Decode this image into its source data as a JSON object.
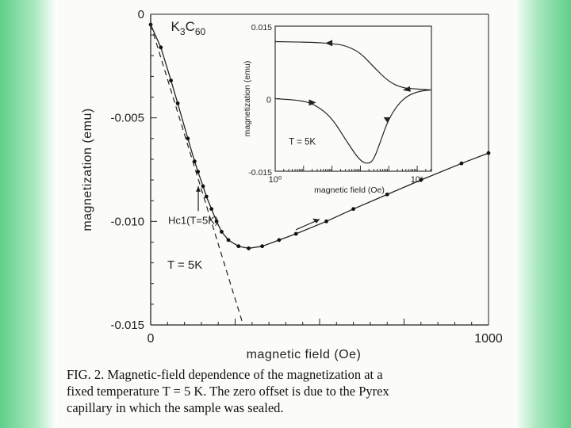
{
  "page": {
    "side_colors": {
      "green": "#5fd08a",
      "light_green": "#a9e8bf",
      "paper": "#fbfbf7"
    }
  },
  "chart_data": [
    {
      "type": "line",
      "title": "",
      "sample_label": "K3C60",
      "xlabel": "magnetic field (Oe)",
      "ylabel": "magnetization (emu)",
      "xlim": [
        0,
        1000
      ],
      "ylim": [
        -0.015,
        0
      ],
      "x_tick_labels": [
        "0",
        "1000"
      ],
      "y_tick_labels": [
        "0",
        "-0.005",
        "-0.010",
        "-0.015"
      ],
      "y_ticks": [
        0,
        -0.005,
        -0.01,
        -0.015
      ],
      "series": [
        {
          "name": "",
          "style": "solid line with dots",
          "x": [
            0,
            30,
            60,
            80,
            110,
            130,
            140,
            155,
            165,
            180,
            195,
            210,
            230,
            260,
            290,
            330,
            380,
            430,
            520,
            600,
            700,
            800,
            920,
            1000
          ],
          "y": [
            -0.0005,
            -0.0016,
            -0.0032,
            -0.0043,
            -0.006,
            -0.0071,
            -0.0076,
            -0.0083,
            -0.0088,
            -0.0094,
            -0.01,
            -0.0105,
            -0.0109,
            -0.0112,
            -0.0113,
            -0.0112,
            -0.0109,
            -0.0106,
            -0.01,
            -0.0094,
            -0.0087,
            -0.008,
            -0.0072,
            -0.0067
          ]
        },
        {
          "name": "",
          "style": "dashed line",
          "x": [
            0,
            270
          ],
          "y": [
            -0.0005,
            -0.0148
          ]
        }
      ],
      "annotations": [
        {
          "text": "Hc1(T=5K)",
          "x": 155,
          "y": -0.0083
        },
        {
          "text": "T = 5K",
          "x": 190,
          "y": -0.0121
        }
      ]
    },
    {
      "type": "line",
      "title": "",
      "xlabel": "magnetic field (Oe)",
      "ylabel": "magnetization (emu)",
      "x_scale": "log",
      "xlim": [
        1,
        100000
      ],
      "ylim": [
        -0.015,
        0.015
      ],
      "x_tick_labels": [
        "10⁰",
        "10⁵"
      ],
      "y_tick_labels": [
        "0.015",
        "0",
        "-0.015"
      ],
      "label": "T = 5K",
      "series": [
        {
          "name": "",
          "style": "increasing field",
          "x": [
            1,
            10,
            30,
            100,
            300,
            1000,
            2000,
            3000,
            5000,
            10000,
            30000,
            100000,
            300000
          ],
          "y": [
            0.0,
            -0.0004,
            -0.0015,
            -0.004,
            -0.0085,
            -0.013,
            -0.0135,
            -0.0125,
            -0.009,
            -0.004,
            0.0,
            0.0015,
            0.0018
          ]
        },
        {
          "name": "",
          "style": "decreasing field",
          "x": [
            300000,
            100000,
            30000,
            10000,
            3000,
            1000,
            300,
            100,
            30,
            10,
            1
          ],
          "y": [
            0.0018,
            0.002,
            0.0022,
            0.0035,
            0.0065,
            0.0095,
            0.011,
            0.0114,
            0.0116,
            0.0117,
            0.0118
          ]
        }
      ]
    }
  ],
  "caption": {
    "lines": [
      "FIG. 2.  Magnetic-field dependence of the magnetization at a",
      "fixed temperature  T = 5 K.  The zero offset is due to the Pyrex",
      "capillary in which the sample was sealed."
    ]
  }
}
